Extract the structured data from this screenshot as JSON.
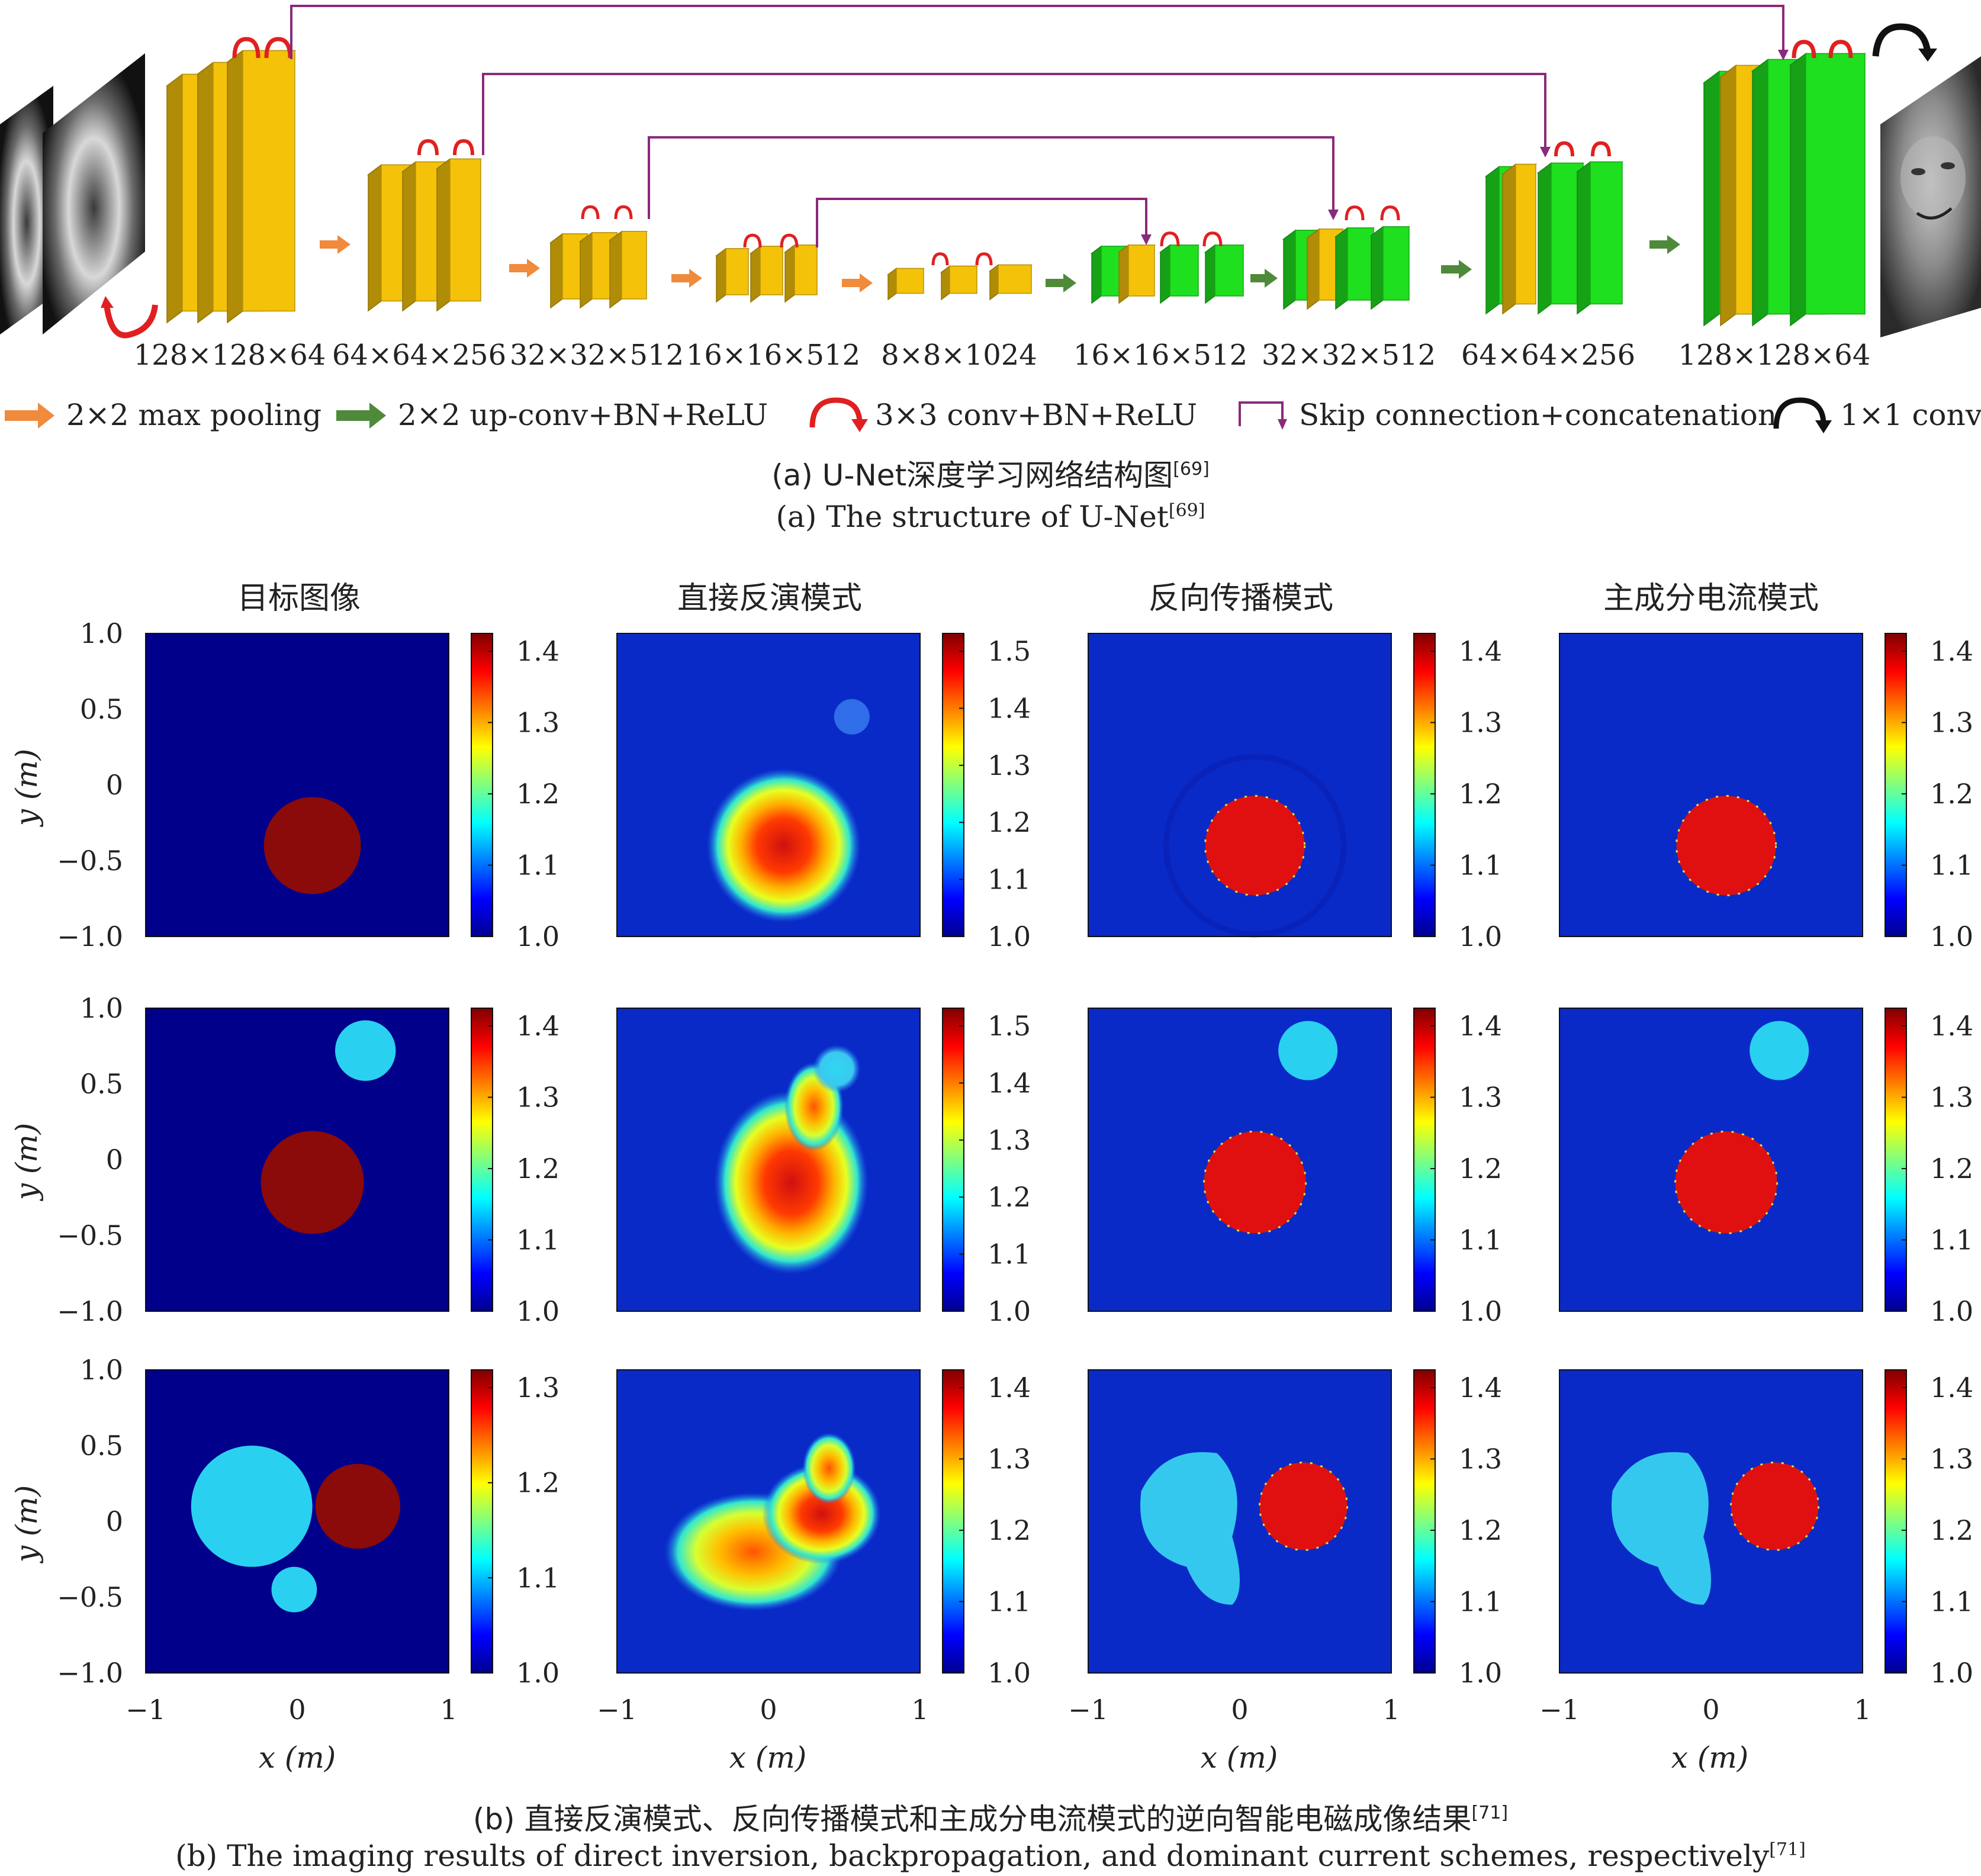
{
  "unet": {
    "layer_sizes": [
      "128×128×64",
      "64×64×256",
      "32×32×512",
      "16×16×512",
      "8×8×1024",
      "16×16×512",
      "32×32×512",
      "64×64×256",
      "128×128×64"
    ],
    "legend": [
      {
        "icon": "orange-arrow-icon",
        "label": "2×2 max pooling"
      },
      {
        "icon": "green-arrow-icon",
        "label": "2×2 up-conv+BN+ReLU"
      },
      {
        "icon": "red-arc-arrow-icon",
        "label": "3×3 conv+BN+ReLU"
      },
      {
        "icon": "skip-connection-icon",
        "label": "Skip connection+concatenation"
      },
      {
        "icon": "black-arc-arrow-icon",
        "label": "1×1 conv"
      }
    ],
    "caption_cn_prefix": "(a) U-Net深度学习网络结构图",
    "caption_en_prefix": "(a) The structure of U-Net",
    "caption_ref": "[69]"
  },
  "colors": {
    "encoder_block": "#f5c20a",
    "decoder_block": "#1fe01f",
    "pool_arrow": "#f08a3c",
    "upconv_arrow": "#4e8a3a",
    "conv_arc": "#e02020",
    "skip_line": "#8a2a7a",
    "background_map": "#0a2ac8",
    "target_background": "#00008a"
  },
  "results": {
    "column_titles": [
      "目标图像",
      "直接反演模式",
      "反向传播模式",
      "主成分电流模式"
    ],
    "y_axis_label": "y (m)",
    "x_axis_label": "x (m)",
    "y_ticks": [
      "1.0",
      "0.5",
      "0",
      "−0.5",
      "−1.0"
    ],
    "x_ticks": [
      "−1",
      "0",
      "1"
    ],
    "colorbar_ticks": [
      [
        [
          "1.4",
          "1.3",
          "1.2",
          "1.1",
          "1.0"
        ],
        [
          "1.5",
          "1.4",
          "1.3",
          "1.2",
          "1.1",
          "1.0"
        ],
        [
          "1.4",
          "1.3",
          "1.2",
          "1.1",
          "1.0"
        ],
        [
          "1.4",
          "1.3",
          "1.2",
          "1.1",
          "1.0"
        ]
      ],
      [
        [
          "1.4",
          "1.3",
          "1.2",
          "1.1",
          "1.0"
        ],
        [
          "1.5",
          "1.4",
          "1.3",
          "1.2",
          "1.1",
          "1.0"
        ],
        [
          "1.4",
          "1.3",
          "1.2",
          "1.1",
          "1.0"
        ],
        [
          "1.4",
          "1.3",
          "1.2",
          "1.1",
          "1.0"
        ]
      ],
      [
        [
          "1.3",
          "1.2",
          "1.1",
          "1.0"
        ],
        [
          "1.4",
          "1.3",
          "1.2",
          "1.1",
          "1.0"
        ],
        [
          "1.4",
          "1.3",
          "1.2",
          "1.1",
          "1.0"
        ],
        [
          "1.4",
          "1.3",
          "1.2",
          "1.1",
          "1.0"
        ]
      ]
    ],
    "caption_cn_prefix": "(b) 直接反演模式、反向传播模式和主成分电流模式的逆向智能电磁成像结果",
    "caption_en_prefix": "(b) The imaging results of direct inversion, backpropagation, and dominant current schemes, respectively",
    "caption_ref": "[71]"
  }
}
